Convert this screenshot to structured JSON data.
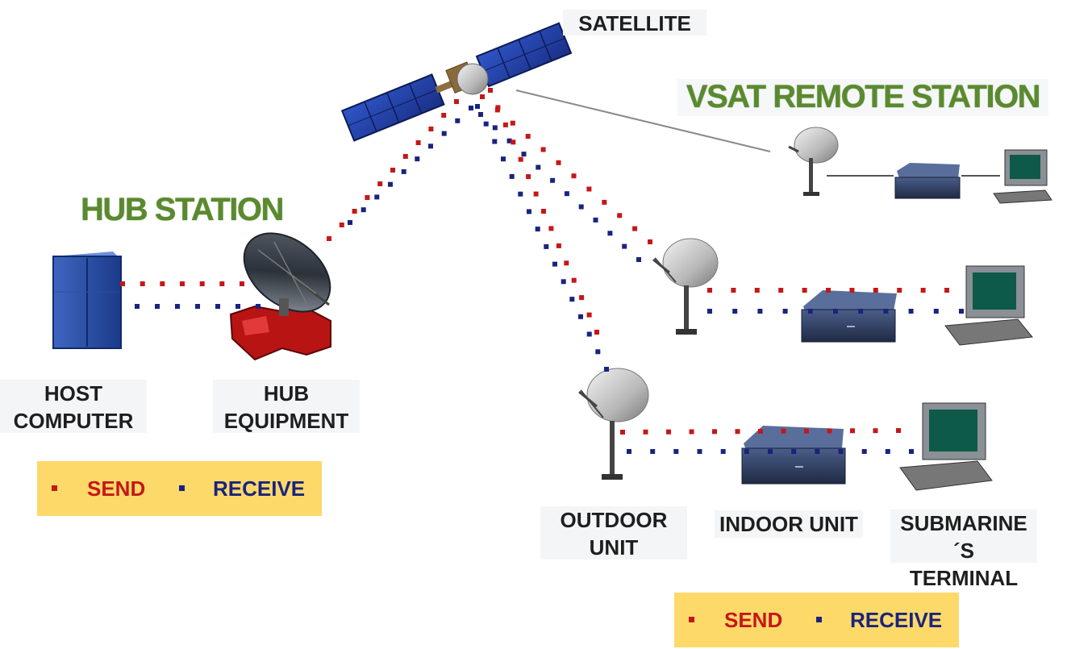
{
  "labels": {
    "satellite": "SATELLITE",
    "host_computer_1": "HOST",
    "host_computer_2": "COMPUTER",
    "hub_equipment_1": "HUB",
    "hub_equipment_2": "EQUIPMENT",
    "outdoor_unit_1": "OUTDOOR",
    "outdoor_unit_2": "UNIT",
    "indoor_unit": "INDOOR UNIT",
    "terminal_1": "SUBMARINE´S",
    "terminal_2": "TERMINAL"
  },
  "titles": {
    "hub_station": "HUB STATION",
    "vsat_remote_station": "VSAT REMOTE STATION"
  },
  "legend": {
    "send": "SEND",
    "receive": "RECEIVE"
  },
  "colors": {
    "send": "#c41818",
    "receive": "#1a237e",
    "title_green": "#5a8a2e",
    "legend_bg": "#fdd96a"
  },
  "icons": [
    "satellite-icon",
    "host-computer-icon",
    "hub-dish-icon",
    "hub-equipment-icon",
    "dish-antenna-icon",
    "indoor-unit-icon",
    "terminal-icon"
  ]
}
